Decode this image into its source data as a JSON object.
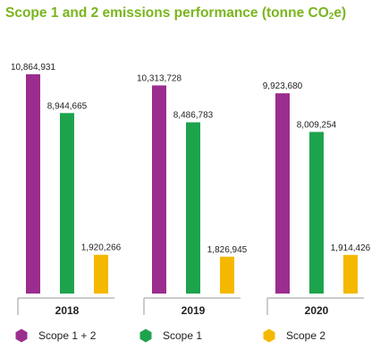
{
  "title_main": "Scope 1 and 2 emissions performance (tonne CO",
  "title_sub": "2",
  "title_end": "e)",
  "colors": {
    "title": "#7ab51d",
    "scope12": "#9b2d8e",
    "scope1": "#1ea34d",
    "scope2": "#f5b800",
    "bracket": "#9a9a9a"
  },
  "chart_data": {
    "type": "bar",
    "categories": [
      "2018",
      "2019",
      "2020"
    ],
    "series": [
      {
        "name": "Scope 1 + 2",
        "values": [
          10864931,
          10313728,
          9923680
        ],
        "labels": [
          "10,864,931",
          "10,313,728",
          "9,923,680"
        ]
      },
      {
        "name": "Scope 1",
        "values": [
          8944665,
          8486783,
          8009254
        ],
        "labels": [
          "8,944,665",
          "8,486,783",
          "8,009,254"
        ]
      },
      {
        "name": "Scope 2",
        "values": [
          1920266,
          1826945,
          1914426
        ],
        "labels": [
          "1,920,266",
          "1,826,945",
          "1,914,426"
        ]
      }
    ],
    "legend_position": "bottom",
    "grid": false
  }
}
